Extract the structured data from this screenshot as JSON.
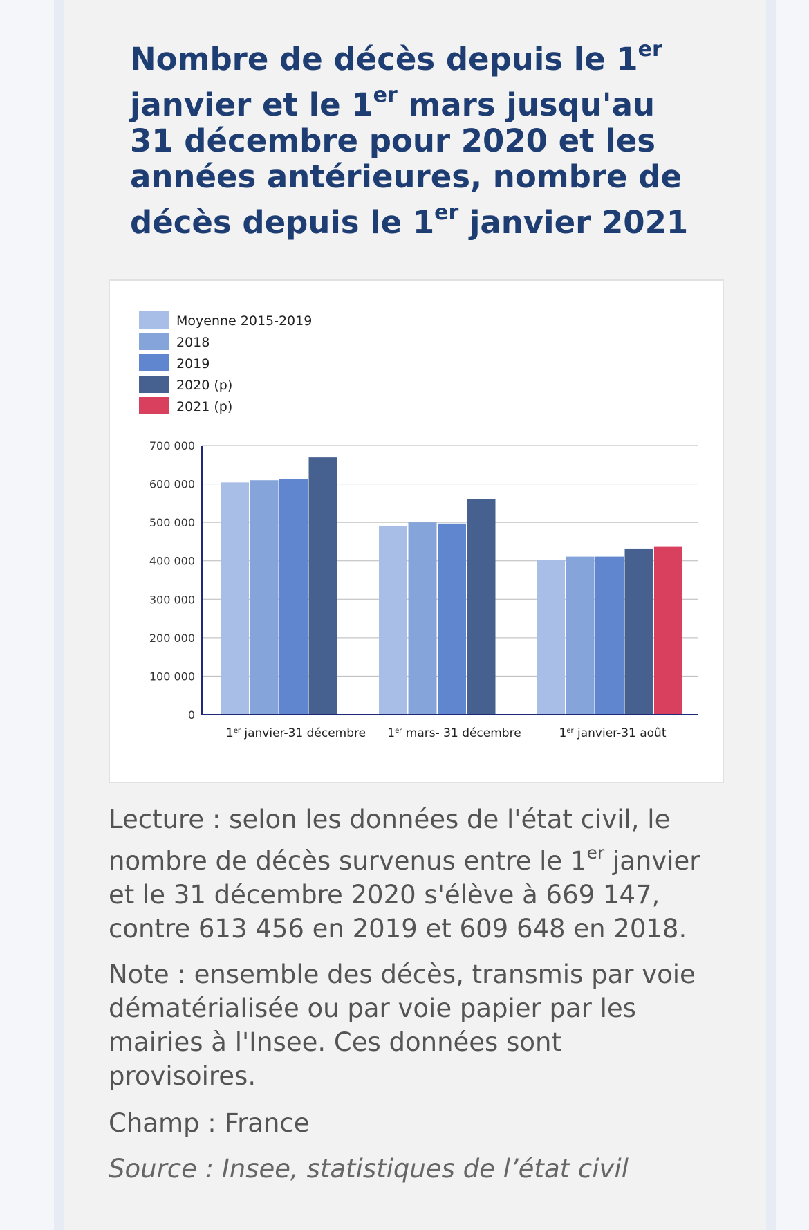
{
  "title": {
    "lines": [
      {
        "pre": "Nombre de décès depuis le 1",
        "sup": "er",
        "post": ""
      },
      {
        "pre": "janvier et le 1",
        "sup": "er",
        "post": " mars jusqu'au"
      },
      {
        "pre": "31 décembre pour 2020 et les",
        "sup": "",
        "post": ""
      },
      {
        "pre": "années antérieures, nombre de",
        "sup": "",
        "post": ""
      },
      {
        "pre": "décès depuis le 1",
        "sup": "er",
        "post": " janvier 2021"
      }
    ]
  },
  "chart_data": {
    "type": "bar",
    "title": "",
    "xlabel": "",
    "ylabel": "",
    "ylim": [
      0,
      700000
    ],
    "yticks": [
      {
        "value": 0,
        "label": "0"
      },
      {
        "value": 100000,
        "label": "100 000"
      },
      {
        "value": 200000,
        "label": "200 000"
      },
      {
        "value": 300000,
        "label": "300 000"
      },
      {
        "value": 400000,
        "label": "400 000"
      },
      {
        "value": 500000,
        "label": "500 000"
      },
      {
        "value": 600000,
        "label": "600 000"
      },
      {
        "value": 700000,
        "label": "700 000"
      }
    ],
    "grid": true,
    "legend_position": "top-left",
    "categories": [
      {
        "pre": "1",
        "sup": "er",
        "post": " janvier-31 décembre"
      },
      {
        "pre": "1",
        "sup": "er",
        "post": " mars- 31 décembre"
      },
      {
        "pre": "1",
        "sup": "er",
        "post": " janvier-31 août"
      }
    ],
    "series": [
      {
        "name": "Moyenne 2015-2019",
        "color": "#a8bee6",
        "values": [
          604000,
          491000,
          402000
        ]
      },
      {
        "name": "2018",
        "color": "#85a5da",
        "values": [
          609648,
          500000,
          411000
        ]
      },
      {
        "name": "2019",
        "color": "#5f86cf",
        "values": [
          613456,
          497000,
          411000
        ]
      },
      {
        "name": "2020 (p)",
        "color": "#46618f",
        "values": [
          669147,
          560000,
          432000
        ]
      },
      {
        "name": "2021 (p)",
        "color": "#d8405e",
        "values": [
          null,
          null,
          438000
        ]
      }
    ]
  },
  "notes": {
    "lecture": [
      {
        "pre": "Lecture : selon les données de l'état civil, le",
        "sup": "",
        "post": ""
      },
      {
        "pre": "nombre de décès survenus entre le 1",
        "sup": "er",
        "post": " janvier"
      },
      {
        "pre": "et le 31 décembre 2020 s'élève à 669 147,",
        "sup": "",
        "post": ""
      },
      {
        "pre": "contre 613 456 en 2019 et 609 648 en 2018.",
        "sup": "",
        "post": ""
      }
    ],
    "note": [
      "Note : ensemble des décès, transmis par voie",
      "dématérialisée ou par voie papier par les",
      "mairies à l'Insee. Ces données sont",
      "provisoires."
    ],
    "champ": "Champ : France",
    "source": "Source : Insee, statistiques de l’état civil"
  }
}
